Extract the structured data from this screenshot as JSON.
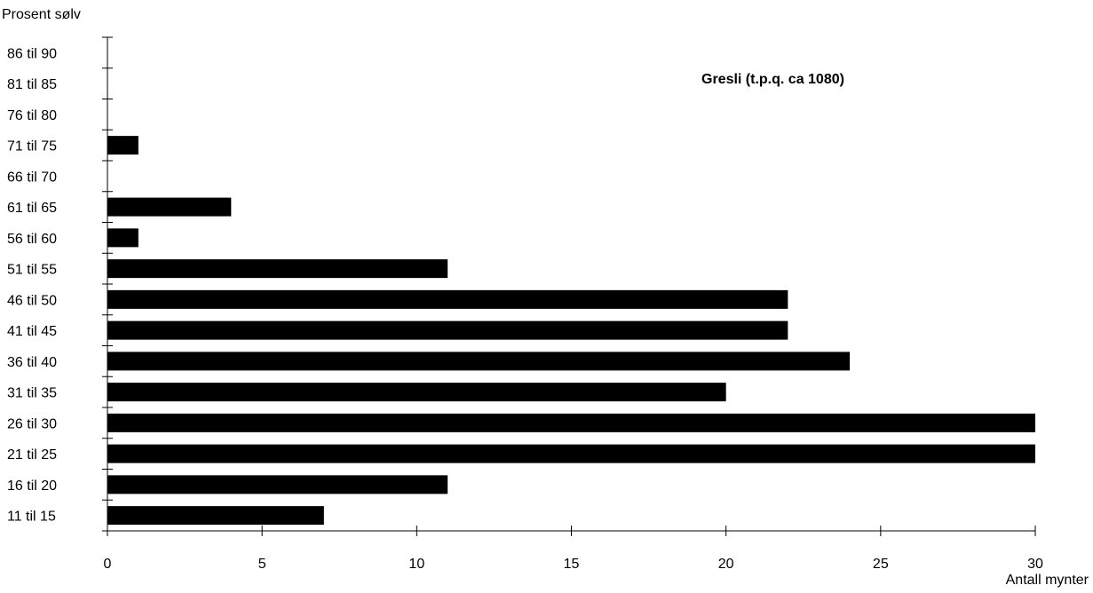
{
  "chart_data": {
    "type": "bar",
    "orientation": "horizontal",
    "ylabel": "Prosent sølv",
    "xlabel": "Antall mynter",
    "annotation": "Gresli (t.p.q. ca 1080)",
    "categories": [
      "11 til 15",
      "16 til 20",
      "21 til 25",
      "26 til 30",
      "31 til 35",
      "36 til 40",
      "41 til 45",
      "46 til 50",
      "51 til 55",
      "56 til 60",
      "61 til 65",
      "66 til 70",
      "71 til 75",
      "76 til 80",
      "81 til 85",
      "86 til 90"
    ],
    "values": [
      7,
      11,
      30,
      30,
      20,
      24,
      22,
      22,
      11,
      1,
      4,
      0,
      1,
      0,
      0,
      0
    ],
    "xlim": [
      0,
      30
    ],
    "xticks": [
      0,
      5,
      10,
      15,
      20,
      25,
      30
    ],
    "bar_color": "#000000",
    "grid": false
  }
}
